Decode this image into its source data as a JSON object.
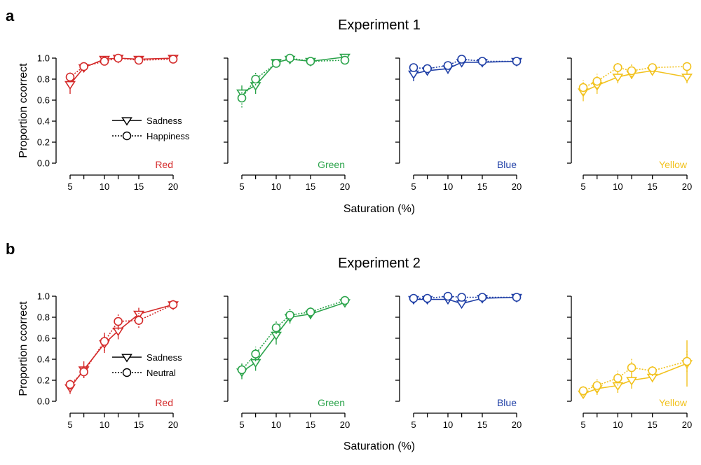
{
  "figure": {
    "panels": [
      {
        "letter": "a",
        "title": "Experiment 1",
        "legend": [
          "Sadness",
          "Happiness"
        ]
      },
      {
        "letter": "b",
        "title": "Experiment 2",
        "legend": [
          "Sadness",
          "Neutral"
        ]
      }
    ],
    "ylabel": "Proportion ccorrect",
    "xlabel": "Saturation (%)"
  },
  "chart_data": [
    {
      "type": "line",
      "panel": "a",
      "subplot": "Red",
      "color": "#d42a2a",
      "x": [
        5,
        7,
        10,
        12,
        15,
        20
      ],
      "xticks": [
        5,
        10,
        15,
        20
      ],
      "ylim": [
        0,
        1
      ],
      "yticks": [
        "0.0",
        "0.2",
        "0.4",
        "0.6",
        "0.8",
        "1.0"
      ],
      "series": [
        {
          "name": "Sadness",
          "line": "solid",
          "marker": "triangle-down",
          "values": [
            0.75,
            0.91,
            0.99,
            1.0,
            0.99,
            1.0
          ],
          "err": [
            0.09,
            0.04,
            0.02,
            0.02,
            0.02,
            0.01
          ]
        },
        {
          "name": "Happiness",
          "line": "dotted",
          "marker": "circle",
          "values": [
            0.82,
            0.92,
            0.97,
            1.0,
            0.98,
            0.99
          ],
          "err": [
            0.05,
            0.04,
            0.02,
            0.01,
            0.02,
            0.01
          ]
        }
      ]
    },
    {
      "type": "line",
      "panel": "a",
      "subplot": "Green",
      "color": "#2aa34a",
      "x": [
        5,
        7,
        10,
        12,
        15,
        20
      ],
      "xticks": [
        5,
        10,
        15,
        20
      ],
      "ylim": [
        0,
        1
      ],
      "yticks": [],
      "series": [
        {
          "name": "Sadness",
          "line": "solid",
          "marker": "triangle-down",
          "values": [
            0.67,
            0.74,
            0.96,
            0.99,
            0.97,
            1.01
          ],
          "err": [
            0.07,
            0.08,
            0.03,
            0.02,
            0.02,
            0.01
          ]
        },
        {
          "name": "Happiness",
          "line": "dotted",
          "marker": "circle",
          "values": [
            0.62,
            0.8,
            0.95,
            1.0,
            0.97,
            0.98
          ],
          "err": [
            0.09,
            0.06,
            0.03,
            0.01,
            0.02,
            0.01
          ]
        }
      ]
    },
    {
      "type": "line",
      "panel": "a",
      "subplot": "Blue",
      "color": "#1f3fa6",
      "x": [
        5,
        7,
        10,
        12,
        15,
        20
      ],
      "xticks": [
        5,
        10,
        15,
        20
      ],
      "ylim": [
        0,
        1
      ],
      "yticks": [],
      "series": [
        {
          "name": "Sadness",
          "line": "solid",
          "marker": "triangle-down",
          "values": [
            0.85,
            0.88,
            0.9,
            0.96,
            0.96,
            0.97
          ],
          "err": [
            0.07,
            0.04,
            0.05,
            0.03,
            0.02,
            0.02
          ]
        },
        {
          "name": "Happiness",
          "line": "dotted",
          "marker": "circle",
          "values": [
            0.91,
            0.9,
            0.93,
            0.99,
            0.97,
            0.97
          ],
          "err": [
            0.04,
            0.04,
            0.04,
            0.01,
            0.02,
            0.02
          ]
        }
      ]
    },
    {
      "type": "line",
      "panel": "a",
      "subplot": "Yellow",
      "color": "#f2c21e",
      "x": [
        5,
        7,
        10,
        12,
        15,
        20
      ],
      "xticks": [
        5,
        10,
        15,
        20
      ],
      "ylim": [
        0,
        1
      ],
      "yticks": [],
      "series": [
        {
          "name": "Sadness",
          "line": "solid",
          "marker": "triangle-down",
          "values": [
            0.68,
            0.74,
            0.82,
            0.85,
            0.88,
            0.82
          ],
          "err": [
            0.09,
            0.08,
            0.06,
            0.05,
            0.04,
            0.06
          ]
        },
        {
          "name": "Happiness",
          "line": "dotted",
          "marker": "circle",
          "values": [
            0.72,
            0.78,
            0.91,
            0.88,
            0.91,
            0.92
          ],
          "err": [
            0.07,
            0.07,
            0.05,
            0.06,
            0.04,
            0.04
          ]
        }
      ]
    },
    {
      "type": "line",
      "panel": "b",
      "subplot": "Red",
      "color": "#d42a2a",
      "x": [
        5,
        7,
        10,
        12,
        15,
        20
      ],
      "xticks": [
        5,
        10,
        15,
        20
      ],
      "ylim": [
        0,
        1
      ],
      "yticks": [
        "0.0",
        "0.2",
        "0.4",
        "0.6",
        "0.8",
        "1.0"
      ],
      "series": [
        {
          "name": "Sadness",
          "line": "solid",
          "marker": "triangle-down",
          "values": [
            0.13,
            0.3,
            0.55,
            0.67,
            0.83,
            0.92
          ],
          "err": [
            0.06,
            0.08,
            0.09,
            0.08,
            0.06,
            0.04
          ]
        },
        {
          "name": "Neutral",
          "line": "dotted",
          "marker": "circle",
          "values": [
            0.16,
            0.28,
            0.57,
            0.76,
            0.77,
            0.92
          ],
          "err": [
            0.05,
            0.06,
            0.09,
            0.08,
            0.07,
            0.05
          ]
        }
      ]
    },
    {
      "type": "line",
      "panel": "b",
      "subplot": "Green",
      "color": "#2aa34a",
      "x": [
        5,
        7,
        10,
        12,
        15,
        20
      ],
      "xticks": [
        5,
        10,
        15,
        20
      ],
      "ylim": [
        0,
        1
      ],
      "yticks": [],
      "series": [
        {
          "name": "Sadness",
          "line": "solid",
          "marker": "triangle-down",
          "values": [
            0.28,
            0.37,
            0.63,
            0.8,
            0.83,
            0.94
          ],
          "err": [
            0.07,
            0.08,
            0.09,
            0.06,
            0.05,
            0.03
          ]
        },
        {
          "name": "Neutral",
          "line": "dotted",
          "marker": "circle",
          "values": [
            0.3,
            0.45,
            0.7,
            0.82,
            0.85,
            0.96
          ],
          "err": [
            0.06,
            0.07,
            0.06,
            0.06,
            0.05,
            0.03
          ]
        }
      ]
    },
    {
      "type": "line",
      "panel": "b",
      "subplot": "Blue",
      "color": "#1f3fa6",
      "x": [
        5,
        7,
        10,
        12,
        15,
        20
      ],
      "xticks": [
        5,
        10,
        15,
        20
      ],
      "ylim": [
        0,
        1
      ],
      "yticks": [],
      "series": [
        {
          "name": "Sadness",
          "line": "solid",
          "marker": "triangle-down",
          "values": [
            0.97,
            0.97,
            0.97,
            0.93,
            0.98,
            0.99
          ],
          "err": [
            0.02,
            0.02,
            0.02,
            0.04,
            0.02,
            0.01
          ]
        },
        {
          "name": "Neutral",
          "line": "dotted",
          "marker": "circle",
          "values": [
            0.98,
            0.98,
            1.0,
            0.99,
            0.99,
            0.99
          ],
          "err": [
            0.02,
            0.02,
            0.01,
            0.01,
            0.01,
            0.01
          ]
        }
      ]
    },
    {
      "type": "line",
      "panel": "b",
      "subplot": "Yellow",
      "color": "#f2c21e",
      "x": [
        5,
        7,
        10,
        12,
        15,
        20
      ],
      "xticks": [
        5,
        10,
        15,
        20
      ],
      "ylim": [
        0,
        1
      ],
      "yticks": [],
      "series": [
        {
          "name": "Sadness",
          "line": "solid",
          "marker": "triangle-down",
          "values": [
            0.07,
            0.12,
            0.15,
            0.2,
            0.23,
            0.36
          ],
          "err": [
            0.04,
            0.06,
            0.07,
            0.08,
            0.05,
            0.22
          ]
        },
        {
          "name": "Neutral",
          "line": "dotted",
          "marker": "circle",
          "values": [
            0.1,
            0.15,
            0.22,
            0.32,
            0.29,
            0.38
          ],
          "err": [
            0.05,
            0.06,
            0.07,
            0.09,
            0.05,
            0.1
          ]
        }
      ]
    }
  ]
}
